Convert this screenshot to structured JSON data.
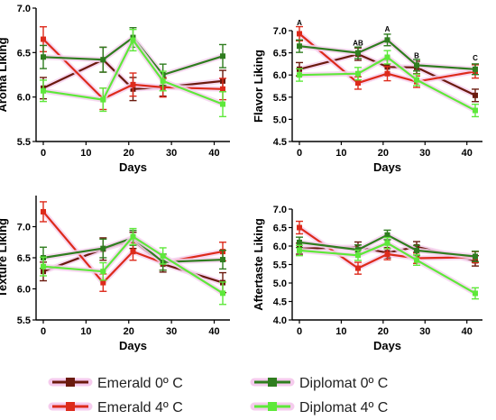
{
  "chart_data": [
    {
      "type": "line",
      "ylabel": "Aroma Liking",
      "xlabel": "Days",
      "xlim": [
        0,
        42
      ],
      "xticks": [
        0,
        10,
        20,
        30,
        40
      ],
      "ylim": [
        5.5,
        7.0
      ],
      "yticks": [
        "5.5",
        "6.0",
        "6.5",
        "7.0"
      ],
      "x": [
        0,
        14,
        21,
        28,
        42
      ],
      "series": [
        {
          "name": "Emerald 0º C",
          "values": [
            6.1,
            6.42,
            6.09,
            6.11,
            6.18
          ],
          "errors": [
            0.12,
            0.14,
            0.13,
            0.1,
            0.12
          ]
        },
        {
          "name": "Emerald 4º C",
          "values": [
            6.65,
            5.98,
            6.14,
            6.11,
            6.09
          ],
          "errors": [
            0.14,
            0.12,
            0.13,
            0.11,
            0.12
          ]
        },
        {
          "name": "Diplomat 0º C",
          "values": [
            6.45,
            6.42,
            6.67,
            6.25,
            6.46
          ],
          "errors": [
            0.13,
            0.14,
            0.11,
            0.12,
            0.13
          ]
        },
        {
          "name": "Diplomat 4º C",
          "values": [
            6.07,
            5.97,
            6.64,
            6.18,
            5.92
          ],
          "errors": [
            0.12,
            0.13,
            0.12,
            0.11,
            0.14
          ]
        }
      ],
      "annotations": []
    },
    {
      "type": "line",
      "ylabel": "Flavor Liking",
      "xlabel": "Days",
      "xlim": [
        0,
        42
      ],
      "xticks": [
        0,
        10,
        20,
        30,
        40
      ],
      "ylim": [
        4.5,
        7.0
      ],
      "yticks": [
        "4.5",
        "5.0",
        "5.5",
        "6.0",
        "6.5",
        "7.0"
      ],
      "x": [
        0,
        14,
        21,
        28,
        42
      ],
      "series": [
        {
          "name": "Emerald 0º C",
          "values": [
            6.13,
            6.47,
            6.18,
            6.17,
            5.54
          ],
          "errors": [
            0.15,
            0.14,
            0.15,
            0.14,
            0.14
          ]
        },
        {
          "name": "Emerald 4º C",
          "values": [
            6.93,
            5.82,
            6.03,
            5.85,
            6.08
          ],
          "errors": [
            0.16,
            0.14,
            0.16,
            0.13,
            0.15
          ]
        },
        {
          "name": "Diplomat 0º C",
          "values": [
            6.65,
            6.5,
            6.79,
            6.22,
            6.13
          ],
          "errors": [
            0.14,
            0.13,
            0.13,
            0.13,
            0.12
          ]
        },
        {
          "name": "Diplomat 4º C",
          "values": [
            6.0,
            6.03,
            6.4,
            5.89,
            5.2
          ],
          "errors": [
            0.14,
            0.14,
            0.15,
            0.13,
            0.14
          ]
        }
      ],
      "annotations": [
        {
          "text": "A",
          "x": 0,
          "y": 7.12
        },
        {
          "text": "AB",
          "x": 14,
          "y": 6.66
        },
        {
          "text": "A",
          "x": 21,
          "y": 6.98
        },
        {
          "text": "B",
          "x": 28,
          "y": 6.38
        },
        {
          "text": "C",
          "x": 42,
          "y": 6.33
        }
      ]
    },
    {
      "type": "line",
      "ylabel": "Texture Liking",
      "xlabel": "Days",
      "xlim": [
        0,
        42
      ],
      "xticks": [
        0,
        10,
        20,
        30,
        40
      ],
      "ylim": [
        5.5,
        7.5
      ],
      "yticks": [
        "5.5",
        "6.0",
        "6.5",
        "7.0"
      ],
      "x": [
        0,
        14,
        21,
        28,
        42
      ],
      "series": [
        {
          "name": "Emerald 0º C",
          "values": [
            6.28,
            6.64,
            6.78,
            6.4,
            6.1
          ],
          "errors": [
            0.15,
            0.18,
            0.13,
            0.13,
            0.16
          ]
        },
        {
          "name": "Emerald 4º C",
          "values": [
            7.24,
            6.1,
            6.6,
            6.42,
            6.6
          ],
          "errors": [
            0.16,
            0.14,
            0.14,
            0.12,
            0.15
          ]
        },
        {
          "name": "Diplomat 0º C",
          "values": [
            6.5,
            6.65,
            6.82,
            6.43,
            6.47
          ],
          "errors": [
            0.17,
            0.15,
            0.12,
            0.13,
            0.15
          ]
        },
        {
          "name": "Diplomat 4º C",
          "values": [
            6.36,
            6.28,
            6.84,
            6.53,
            5.93
          ],
          "errors": [
            0.15,
            0.14,
            0.13,
            0.13,
            0.18
          ]
        }
      ],
      "annotations": []
    },
    {
      "type": "line",
      "ylabel": "Aftertaste Liking",
      "xlabel": "Days",
      "xlim": [
        0,
        42
      ],
      "xticks": [
        0,
        10,
        20,
        30,
        40
      ],
      "ylim": [
        4.0,
        7.0
      ],
      "yticks": [
        "4.0",
        "4.5",
        "5.0",
        "5.5",
        "6.0",
        "6.5",
        "7.0"
      ],
      "x": [
        0,
        14,
        21,
        28,
        42
      ],
      "series": [
        {
          "name": "Emerald 0º C",
          "values": [
            5.93,
            5.97,
            5.82,
            5.98,
            5.6
          ],
          "errors": [
            0.15,
            0.14,
            0.14,
            0.14,
            0.14
          ]
        },
        {
          "name": "Emerald 4º C",
          "values": [
            6.5,
            5.4,
            5.78,
            5.67,
            5.7
          ],
          "errors": [
            0.17,
            0.16,
            0.15,
            0.14,
            0.15
          ]
        },
        {
          "name": "Diplomat 0º C",
          "values": [
            6.1,
            5.9,
            6.3,
            5.88,
            5.72
          ],
          "errors": [
            0.14,
            0.13,
            0.13,
            0.14,
            0.14
          ]
        },
        {
          "name": "Diplomat 4º C",
          "values": [
            5.88,
            5.75,
            6.08,
            5.62,
            4.72
          ],
          "errors": [
            0.14,
            0.14,
            0.15,
            0.14,
            0.15
          ]
        }
      ],
      "annotations": []
    }
  ],
  "legend": {
    "items": [
      {
        "label": "Emerald 0º C",
        "color": "#6b1a0e"
      },
      {
        "label": "Diplomat 0º C",
        "color": "#2f7d1f"
      },
      {
        "label": "Emerald 4º C",
        "color": "#dd2a1b"
      },
      {
        "label": "Diplomat 4º C",
        "color": "#5ee83a"
      }
    ]
  },
  "colors": {
    "Emerald 0º C": "#6b1a0e",
    "Emerald 4º C": "#dd2a1b",
    "Diplomat 0º C": "#2f7d1f",
    "Diplomat 4º C": "#5ee83a",
    "halo": "#f6d2ee"
  }
}
